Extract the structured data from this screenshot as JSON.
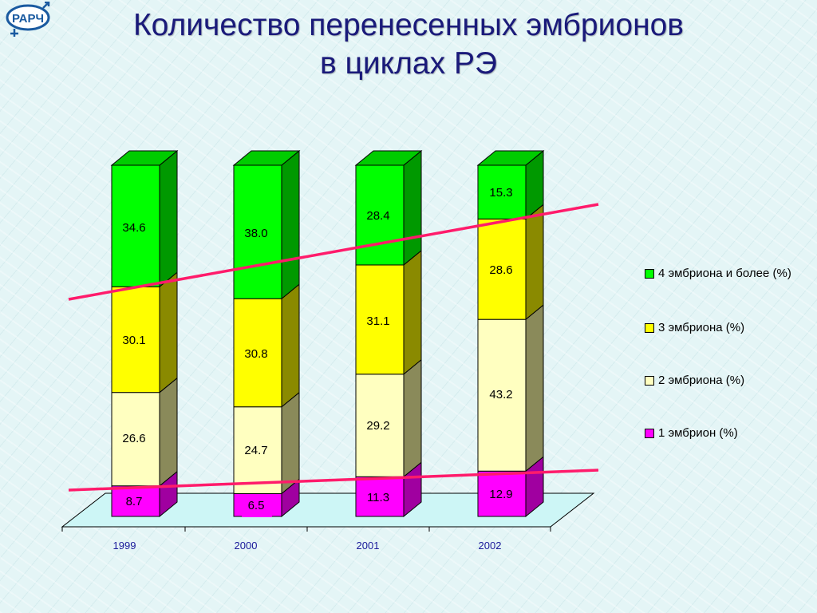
{
  "title": {
    "line1": "Количество перенесенных эмбрионов",
    "line2": "в циклах РЭ"
  },
  "logo": {
    "text": "РАРЧ"
  },
  "chart_data": {
    "type": "bar",
    "stacked": true,
    "three_d": true,
    "categories": [
      "1999",
      "2000",
      "2001",
      "2002"
    ],
    "series": [
      {
        "name": "1 эмбрион (%)",
        "values": [
          8.7,
          6.5,
          11.3,
          12.9
        ],
        "color": "#ff00ff"
      },
      {
        "name": "2 эмбриона (%)",
        "values": [
          26.6,
          24.7,
          29.2,
          43.2
        ],
        "color": "#ffffc0"
      },
      {
        "name": "3 эмбриона (%)",
        "values": [
          30.1,
          30.8,
          31.1,
          28.6
        ],
        "color": "#ffff00"
      },
      {
        "name": "4 эмбриона и более (%)",
        "values": [
          34.6,
          38.0,
          28.4,
          15.3
        ],
        "color": "#00ff00"
      }
    ],
    "value_labels": [
      [
        "8.7",
        "6.5",
        "11.3",
        "12.9"
      ],
      [
        "26.6",
        "24.7",
        "29.2",
        "43.2"
      ],
      [
        "30.1",
        "30.8",
        "31.1",
        "28.6"
      ],
      [
        "34.6",
        "38.0",
        "28.4",
        "15.3"
      ]
    ],
    "ylim": [
      0,
      100
    ],
    "legend_position": "right",
    "trend_line_color": "#ff1b6b",
    "tick_label_color": "#1a1a9a"
  }
}
